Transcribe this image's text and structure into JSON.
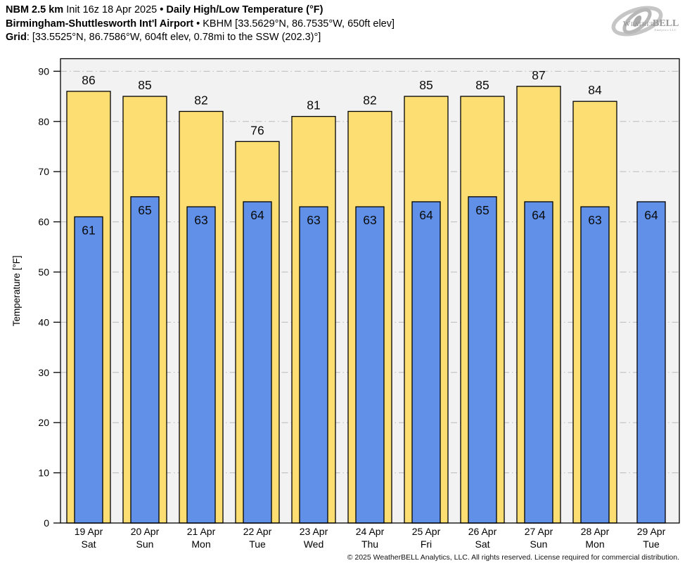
{
  "header": {
    "line1": {
      "model": "NBM 2.5 km",
      "init": "Init 16z 18 Apr 2025",
      "bullet": "•",
      "product": "Daily High/Low Temperature (°F)"
    },
    "line2": {
      "station_name": "Birmingham-Shuttlesworth Int'l Airport",
      "bullet": "•",
      "station_info": "KBHM [33.5629°N, 86.7535°W, 650ft elev]"
    },
    "line3": {
      "label": "Grid",
      "value": ": [33.5525°N, 86.7586°W, 604ft elev, 0.78mi to the SSW (202.3)°]"
    }
  },
  "logo": {
    "weather": "Weather",
    "bell": "BELL",
    "subtitle": "Analytics LLC"
  },
  "footer": {
    "copyright": "© 2025 WeatherBELL Analytics, LLC. All rights reserved. License required for commercial distribution."
  },
  "chart_data": {
    "type": "bar",
    "title": "Daily High/Low Temperature (°F)",
    "xlabel": "",
    "ylabel": "Temperature [°F]",
    "ylim": [
      0,
      92.5
    ],
    "yticks": [
      0,
      10,
      20,
      30,
      40,
      50,
      60,
      70,
      80,
      90
    ],
    "grid": "horizontal-dash-dot",
    "legend": "none",
    "categories": [
      "19 Apr",
      "20 Apr",
      "21 Apr",
      "22 Apr",
      "23 Apr",
      "24 Apr",
      "25 Apr",
      "26 Apr",
      "27 Apr",
      "28 Apr",
      "29 Apr"
    ],
    "weekdays": [
      "Sat",
      "Sun",
      "Mon",
      "Tue",
      "Wed",
      "Thu",
      "Fri",
      "Sat",
      "Sun",
      "Mon",
      "Tue"
    ],
    "series": [
      {
        "name": "High",
        "color": "#FCDE73",
        "values": [
          86,
          85,
          82,
          76,
          81,
          82,
          85,
          85,
          87,
          84,
          null
        ]
      },
      {
        "name": "Low",
        "color": "#6090E8",
        "values": [
          61,
          65,
          63,
          64,
          63,
          63,
          64,
          65,
          64,
          63,
          64
        ]
      }
    ],
    "colors": {
      "bar_outline": "#000000",
      "plot_bg": "#f2f2f2",
      "gridline": "#bbbbbb",
      "page_bg": "#ffffff"
    }
  }
}
